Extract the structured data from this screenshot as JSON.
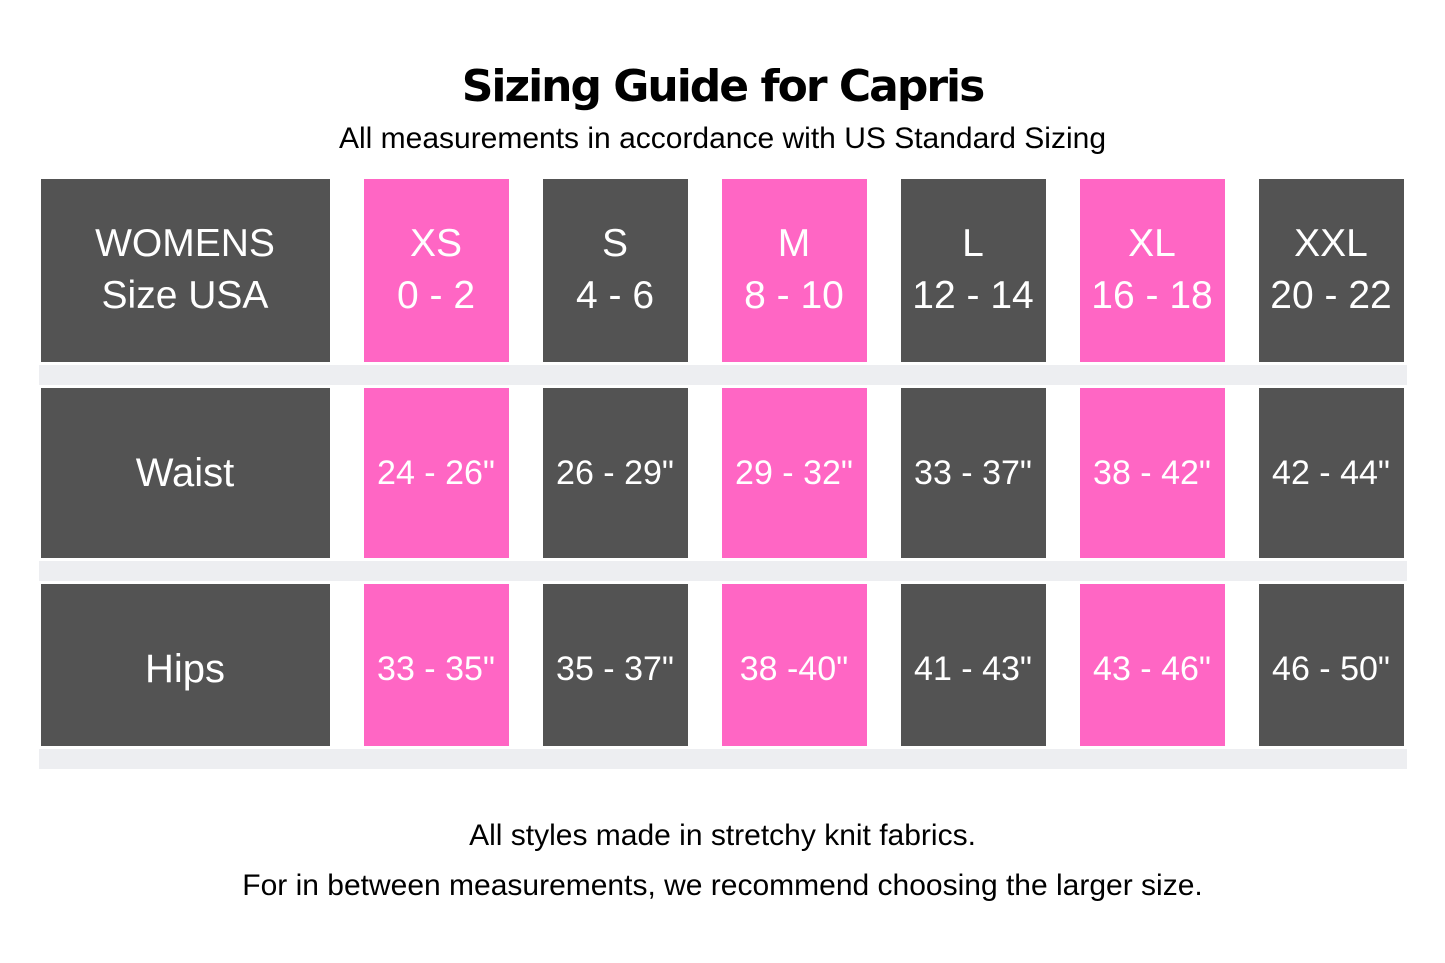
{
  "header": {
    "title": "Sizing Guide for Capris",
    "subtitle": "All measurements in accordance with US Standard Sizing"
  },
  "table": {
    "corner": {
      "line1": "WOMENS",
      "line2": "Size USA"
    },
    "columns": [
      {
        "label": "XS",
        "range": "0 - 2",
        "accent": true
      },
      {
        "label": "S",
        "range": "4 - 6",
        "accent": false
      },
      {
        "label": "M",
        "range": "8 - 10",
        "accent": true
      },
      {
        "label": "L",
        "range": "12 - 14",
        "accent": false
      },
      {
        "label": "XL",
        "range": "16 - 18",
        "accent": true
      },
      {
        "label": "XXL",
        "range": "20 - 22",
        "accent": false
      }
    ],
    "rows": [
      {
        "label": "Waist",
        "values": [
          "24 - 26\"",
          "26 - 29\"",
          "29 - 32\"",
          "33 - 37\"",
          "38 - 42\"",
          "42 - 44\""
        ]
      },
      {
        "label": "Hips",
        "values": [
          "33 - 35\"",
          "35 - 37\"",
          "38 -40\"",
          "41 - 43\"",
          "43 - 46\"",
          "46 - 50\""
        ]
      }
    ]
  },
  "footer": {
    "line1": "All styles made in stretchy knit fabrics.",
    "line2": "For in between measurements, we recommend choosing the larger size."
  },
  "colors": {
    "cell_dark": "#535353",
    "cell_pink": "#ff66c4",
    "divider_band": "#edeef1",
    "cell_text": "#ffffff",
    "page_text": "#000000"
  },
  "chart_data": {
    "type": "table",
    "title": "Sizing Guide for Capris",
    "subtitle": "All measurements in accordance with US Standard Sizing",
    "columns": [
      "WOMENS Size USA",
      "XS 0 - 2",
      "S 4 - 6",
      "M 8 - 10",
      "L 12 - 14",
      "XL 16 - 18",
      "XXL 20 - 22"
    ],
    "rows": [
      [
        "Waist",
        "24 - 26\"",
        "26 - 29\"",
        "29 - 32\"",
        "33 - 37\"",
        "38 - 42\"",
        "42 - 44\""
      ],
      [
        "Hips",
        "33 - 35\"",
        "35 - 37\"",
        "38 -40\"",
        "41 - 43\"",
        "43 - 46\"",
        "46 - 50\""
      ]
    ],
    "notes": [
      "All styles made in stretchy knit fabrics.",
      "For in between measurements, we recommend choosing the larger size."
    ],
    "layout_hints": {
      "accent_columns": [
        "XS",
        "M",
        "XL"
      ],
      "accent_color": "#ff66c4",
      "base_color": "#535353"
    }
  }
}
